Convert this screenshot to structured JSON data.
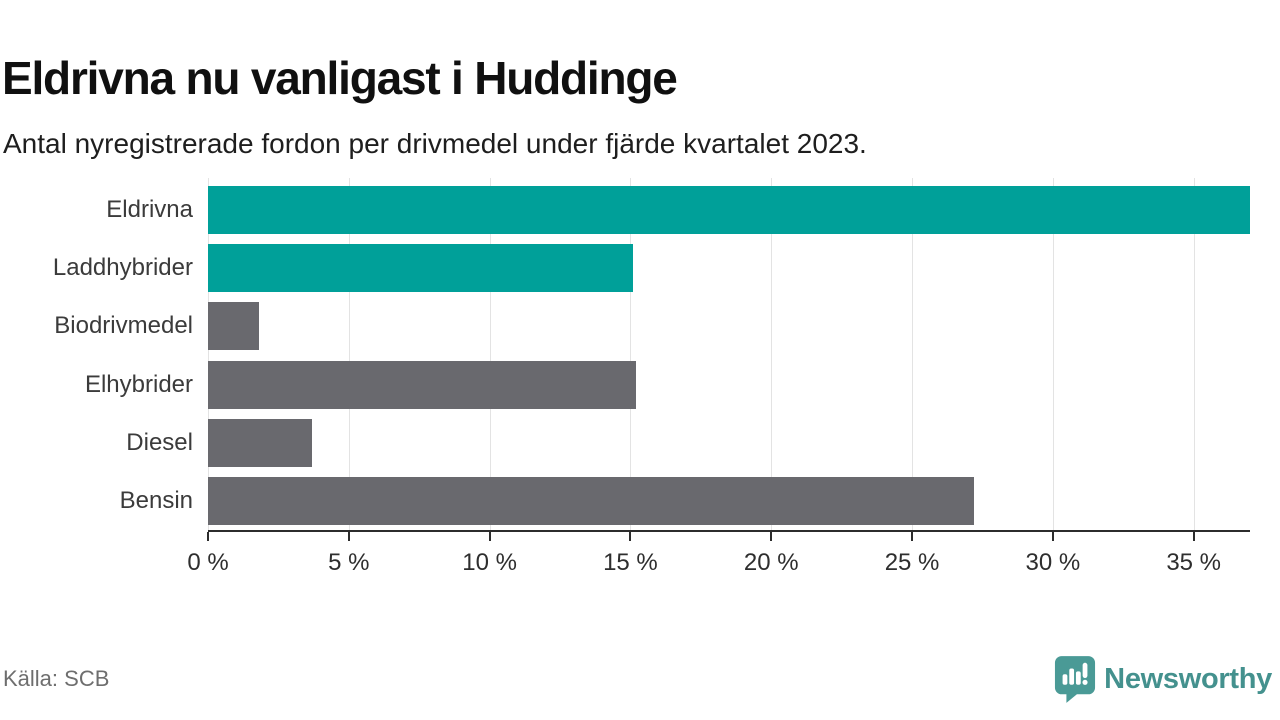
{
  "header": {
    "title": "Eldrivna nu vanligast i Huddinge",
    "subtitle": "Antal nyregistrerade fordon per drivmedel under fjärde kvartalet 2023."
  },
  "chart_data": {
    "type": "bar",
    "orientation": "horizontal",
    "title": "Eldrivna nu vanligast i Huddinge",
    "subtitle": "Antal nyregistrerade fordon per drivmedel under fjärde kvartalet 2023.",
    "categories": [
      "Eldrivna",
      "Laddhybrider",
      "Biodrivmedel",
      "Elhybrider",
      "Diesel",
      "Bensin"
    ],
    "values": [
      37.0,
      15.1,
      1.8,
      15.2,
      3.7,
      27.2
    ],
    "unit": "%",
    "highlighted": [
      true,
      true,
      false,
      false,
      false,
      false
    ],
    "highlight_color": "#00a099",
    "default_color": "#69696e",
    "xlabel": "",
    "ylabel": "",
    "axis": {
      "min": 0,
      "max": 37,
      "ticks": [
        0,
        5,
        10,
        15,
        20,
        25,
        30,
        35
      ],
      "tick_labels": [
        "0 %",
        "5 %",
        "10 %",
        "15 %",
        "20 %",
        "25 %",
        "30 %",
        "35 %"
      ]
    },
    "grid": true,
    "legend": "none"
  },
  "footer": {
    "source": "Källa: SCB",
    "brand": "Newsworthy"
  },
  "icons": {
    "brand_logo": "newsworthy-speech-bubble-bar-chart-icon"
  },
  "colors": {
    "bar_teal": "#00a099",
    "bar_gray": "#69696e",
    "brand_teal": "#4a9a96",
    "grid": "#e3e3e3",
    "axis": "#2c2c2c"
  }
}
